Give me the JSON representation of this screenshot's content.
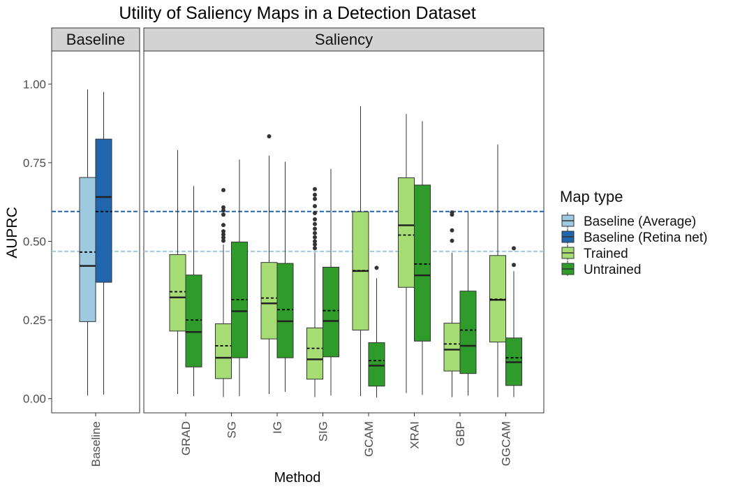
{
  "chart_data": {
    "type": "box",
    "title": "Utility of Saliency Maps in a Detection Dataset",
    "xlabel": "Method",
    "ylabel": "AUPRC",
    "ylim": [
      -0.045,
      1.105
    ],
    "yticks": [
      0.0,
      0.25,
      0.5,
      0.75,
      1.0
    ],
    "ytick_labels": [
      "0.00",
      "0.25",
      "0.50",
      "0.75",
      "1.00"
    ],
    "grid": false,
    "legend": {
      "title": "Map type",
      "placement": "right",
      "entries": [
        {
          "label": "Baseline (Average)",
          "color": "#9ecae1"
        },
        {
          "label": "Baseline (Retina net)",
          "color": "#2166ac"
        },
        {
          "label": "Trained",
          "color": "#a6dc74"
        },
        {
          "label": "Untrained",
          "color": "#2e9b2a"
        }
      ]
    },
    "reference_lines": [
      {
        "series": "Baseline (Retina net)",
        "y": 0.595,
        "color": "#2166ac",
        "style": "dashed"
      },
      {
        "series": "Baseline (Average)",
        "y": 0.468,
        "color": "#9ecae1",
        "style": "dashed"
      }
    ],
    "facets": [
      {
        "strip": "Baseline",
        "categories": [
          "Baseline"
        ],
        "boxes": [
          {
            "category": "Baseline",
            "series": "Baseline (Average)",
            "min": 0.01,
            "q1": 0.245,
            "median": 0.422,
            "q3": 0.703,
            "max": 0.983,
            "mean": 0.466,
            "outliers": []
          },
          {
            "category": "Baseline",
            "series": "Baseline (Retina net)",
            "min": 0.013,
            "q1": 0.37,
            "median": 0.641,
            "q3": 0.825,
            "max": 0.975,
            "mean": 0.595,
            "outliers": []
          }
        ]
      },
      {
        "strip": "Saliency",
        "categories": [
          "GRAD",
          "SG",
          "IG",
          "SIG",
          "GCAM",
          "XRAI",
          "GBP",
          "GGCAM"
        ],
        "boxes": [
          {
            "category": "GRAD",
            "series": "Trained",
            "min": 0.015,
            "q1": 0.215,
            "median": 0.322,
            "q3": 0.458,
            "max": 0.79,
            "mean": 0.34,
            "outliers": []
          },
          {
            "category": "GRAD",
            "series": "Untrained",
            "min": 0.008,
            "q1": 0.101,
            "median": 0.212,
            "q3": 0.393,
            "max": 0.676,
            "mean": 0.25,
            "outliers": []
          },
          {
            "category": "SG",
            "series": "Trained",
            "min": 0.005,
            "q1": 0.064,
            "median": 0.13,
            "q3": 0.238,
            "max": 0.49,
            "mean": 0.168,
            "outliers": [
              0.502,
              0.512,
              0.522,
              0.532,
              0.552,
              0.585,
              0.598,
              0.608,
              0.663
            ]
          },
          {
            "category": "SG",
            "series": "Untrained",
            "min": 0.008,
            "q1": 0.13,
            "median": 0.278,
            "q3": 0.498,
            "max": 0.76,
            "mean": 0.315,
            "outliers": []
          },
          {
            "category": "IG",
            "series": "Trained",
            "min": 0.015,
            "q1": 0.19,
            "median": 0.303,
            "q3": 0.433,
            "max": 0.772,
            "mean": 0.32,
            "outliers": [
              0.834
            ]
          },
          {
            "category": "IG",
            "series": "Untrained",
            "min": 0.022,
            "q1": 0.13,
            "median": 0.246,
            "q3": 0.43,
            "max": 0.753,
            "mean": 0.283,
            "outliers": []
          },
          {
            "category": "SIG",
            "series": "Trained",
            "min": 0.005,
            "q1": 0.062,
            "median": 0.125,
            "q3": 0.225,
            "max": 0.465,
            "mean": 0.16,
            "outliers": [
              0.478,
              0.49,
              0.5,
              0.513,
              0.526,
              0.54,
              0.555,
              0.57,
              0.59,
              0.612,
              0.635,
              0.648,
              0.666
            ]
          },
          {
            "category": "SIG",
            "series": "Untrained",
            "min": 0.01,
            "q1": 0.133,
            "median": 0.247,
            "q3": 0.418,
            "max": 0.73,
            "mean": 0.28,
            "outliers": []
          },
          {
            "category": "GCAM",
            "series": "Trained",
            "min": 0.008,
            "q1": 0.218,
            "median": 0.406,
            "q3": 0.594,
            "max": 0.93,
            "mean": 0.407,
            "outliers": []
          },
          {
            "category": "GCAM",
            "series": "Untrained",
            "min": 0.004,
            "q1": 0.04,
            "median": 0.105,
            "q3": 0.178,
            "max": 0.383,
            "mean": 0.121,
            "outliers": [
              0.416
            ]
          },
          {
            "category": "XRAI",
            "series": "Trained",
            "min": 0.018,
            "q1": 0.354,
            "median": 0.551,
            "q3": 0.702,
            "max": 0.905,
            "mean": 0.52,
            "outliers": []
          },
          {
            "category": "XRAI",
            "series": "Untrained",
            "min": 0.012,
            "q1": 0.183,
            "median": 0.392,
            "q3": 0.679,
            "max": 0.882,
            "mean": 0.428,
            "outliers": []
          },
          {
            "category": "GBP",
            "series": "Trained",
            "min": 0.005,
            "q1": 0.088,
            "median": 0.156,
            "q3": 0.24,
            "max": 0.464,
            "mean": 0.174,
            "outliers": [
              0.502,
              0.535,
              0.585,
              0.592
            ]
          },
          {
            "category": "GBP",
            "series": "Untrained",
            "min": 0.01,
            "q1": 0.08,
            "median": 0.168,
            "q3": 0.342,
            "max": 0.595,
            "mean": 0.218,
            "outliers": []
          },
          {
            "category": "GGCAM",
            "series": "Trained",
            "min": 0.005,
            "q1": 0.18,
            "median": 0.314,
            "q3": 0.455,
            "max": 0.808,
            "mean": 0.316,
            "outliers": []
          },
          {
            "category": "GGCAM",
            "series": "Untrained",
            "min": 0.005,
            "q1": 0.042,
            "median": 0.116,
            "q3": 0.193,
            "max": 0.405,
            "mean": 0.13,
            "outliers": [
              0.425,
              0.478
            ]
          }
        ]
      }
    ]
  }
}
